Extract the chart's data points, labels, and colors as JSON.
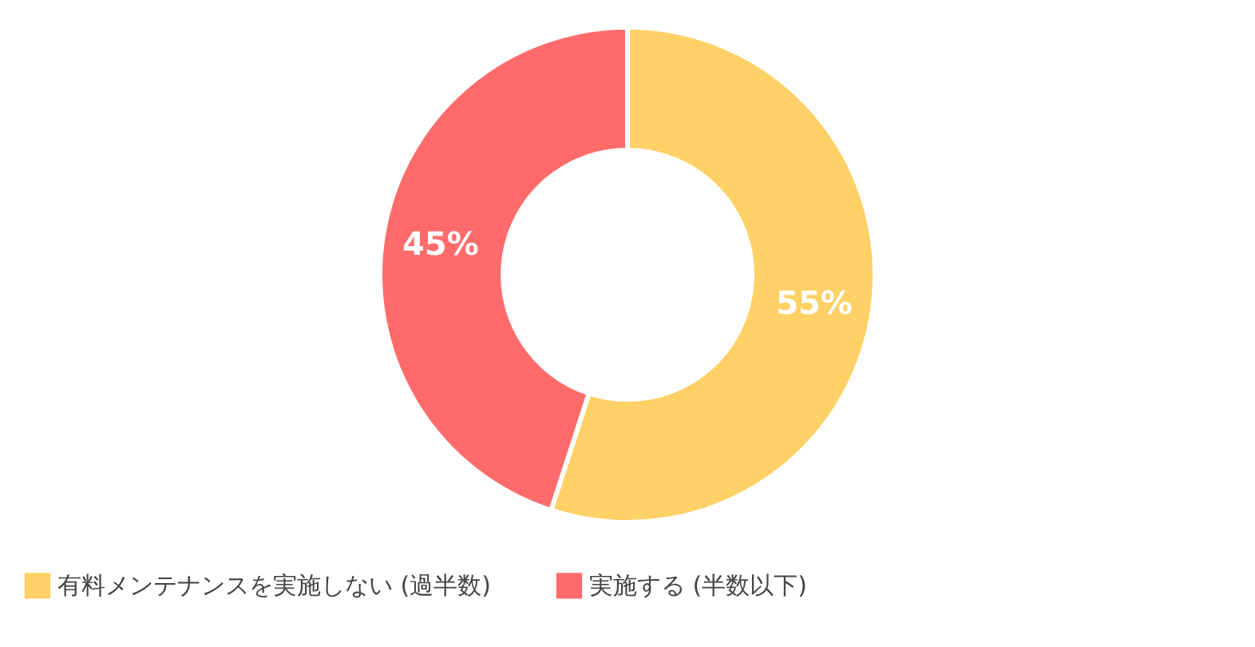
{
  "chart_data": {
    "type": "donut",
    "categories": [
      "有料メンテナンスを実施しない (過半数)",
      "実施する (半数以下)"
    ],
    "values": [
      55,
      45
    ],
    "colors": [
      "#ffd166",
      "#ff6b6b"
    ],
    "value_labels": [
      "55%",
      "45%"
    ],
    "legend": "bottom"
  }
}
